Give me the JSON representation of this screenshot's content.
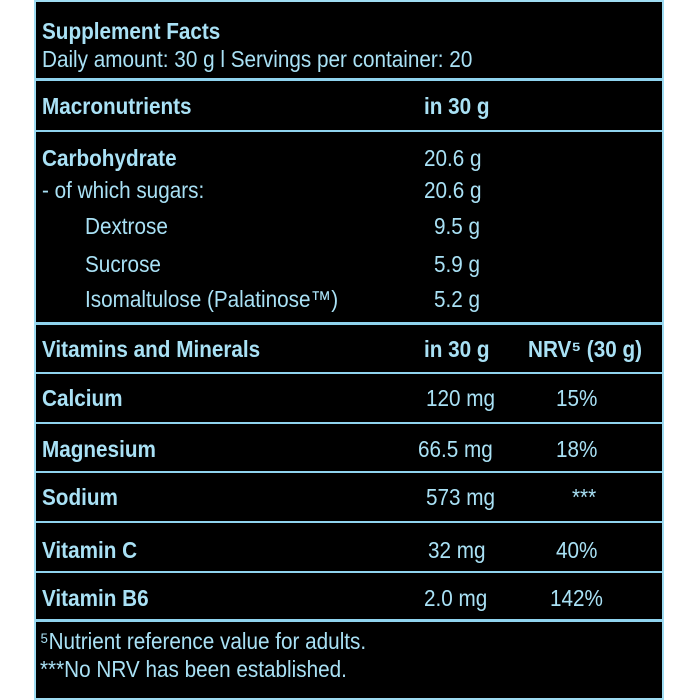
{
  "header": {
    "title": "Supplement Facts",
    "subtitle": "Daily amount: 30 g l Servings per container: 20"
  },
  "macros": {
    "heading": "Macronutrients",
    "amount_heading": "in 30 g",
    "rows": [
      {
        "name": "Carbohydrate",
        "amount": "20.6 g"
      },
      {
        "name": "- of which sugars:",
        "amount": "20.6 g"
      },
      {
        "name": "Dextrose",
        "amount": "9.5 g"
      },
      {
        "name": "Sucrose",
        "amount": "5.9 g"
      },
      {
        "name": "Isomaltulose (Palatinose™)",
        "amount": "5.2 g"
      }
    ]
  },
  "vitamins": {
    "heading": "Vitamins and Minerals",
    "amount_heading": "in 30 g",
    "nrv_heading": "NRV⁵ (30 g)",
    "rows": [
      {
        "name": "Calcium",
        "amount": "120 mg",
        "nrv": "15%"
      },
      {
        "name": "Magnesium",
        "amount": "66.5 mg",
        "nrv": "18%"
      },
      {
        "name": "Sodium",
        "amount": "573 mg",
        "nrv": "***"
      },
      {
        "name": "Vitamin C",
        "amount": "32 mg",
        "nrv": "40%"
      },
      {
        "name": "Vitamin B6",
        "amount": "2.0 mg",
        "nrv": "142%"
      }
    ]
  },
  "footnotes": {
    "note1": "⁵Nutrient reference value for adults.",
    "note2": "***No NRV has been established."
  },
  "colors": {
    "background": "#000000",
    "text": "#a9e1f5",
    "rule": "#8fd3ee"
  }
}
